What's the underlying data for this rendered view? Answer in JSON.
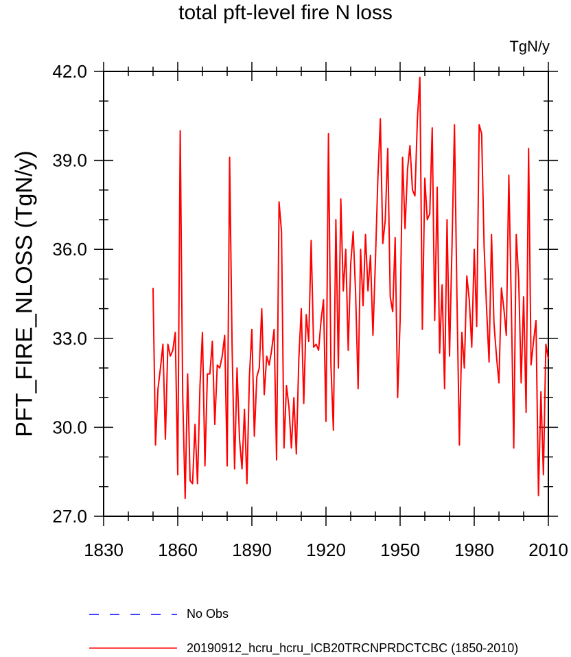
{
  "chart_data": {
    "type": "line",
    "title": "total pft-level fire N loss",
    "units": "TgN/y",
    "ylabel": "PFT_FIRE_NLOSS  (TgN/y)",
    "xlim": [
      1830,
      2010
    ],
    "ylim": [
      27,
      42
    ],
    "x_ticks": [
      "1830",
      "1860",
      "1890",
      "1920",
      "1950",
      "1980",
      "2010"
    ],
    "y_ticks": [
      "27.0",
      "30.0",
      "33.0",
      "36.0",
      "39.0",
      "42.0"
    ],
    "x_tick_values": [
      1830,
      1860,
      1890,
      1920,
      1950,
      1980,
      2010
    ],
    "y_tick_values": [
      27,
      30,
      33,
      36,
      39,
      42
    ],
    "legend": [
      {
        "name": "No Obs",
        "color": "#0000ff",
        "style": "dashed"
      },
      {
        "name": "20190912_hcru_hcru_ICB20TRCNPRDCTCBC (1850-2010)",
        "color": "#ff0000",
        "style": "solid"
      }
    ],
    "series": [
      {
        "name": "20190912_hcru_hcru_ICB20TRCNPRDCTCBC (1850-2010)",
        "color": "#ff0000",
        "x_start": 1850,
        "x_step": 1,
        "values": [
          34.7,
          29.4,
          31.3,
          32.0,
          32.8,
          29.6,
          32.8,
          32.4,
          32.6,
          33.2,
          28.4,
          40.0,
          31.1,
          27.6,
          31.8,
          28.2,
          28.1,
          30.1,
          28.1,
          31.4,
          33.2,
          28.7,
          31.8,
          31.8,
          32.9,
          30.1,
          32.1,
          32.0,
          32.4,
          33.1,
          28.7,
          39.1,
          32.7,
          28.6,
          32.0,
          29.6,
          28.6,
          30.6,
          28.1,
          31.7,
          33.3,
          29.7,
          31.7,
          32.0,
          34.0,
          31.1,
          32.4,
          32.1,
          32.6,
          33.3,
          28.9,
          37.6,
          36.6,
          29.3,
          31.4,
          30.7,
          29.3,
          31.0,
          29.1,
          32.3,
          34.0,
          30.8,
          33.8,
          32.9,
          36.3,
          32.7,
          32.8,
          32.6,
          33.6,
          34.3,
          30.2,
          39.9,
          32.1,
          29.9,
          37.0,
          32.0,
          37.7,
          34.6,
          36.0,
          32.6,
          35.5,
          36.6,
          34.5,
          31.3,
          36.0,
          34.1,
          36.5,
          34.6,
          35.8,
          33.1,
          35.6,
          38.4,
          40.4,
          36.2,
          37.0,
          39.4,
          34.4,
          33.9,
          36.4,
          31.0,
          33.6,
          39.1,
          36.7,
          38.7,
          39.5,
          38.0,
          37.8,
          40.4,
          41.8,
          33.3,
          38.4,
          37.0,
          37.2,
          40.1,
          33.6,
          38.1,
          32.5,
          34.8,
          31.3,
          37.0,
          32.4,
          36.1,
          40.2,
          34.4,
          29.4,
          33.2,
          32.0,
          35.1,
          34.3,
          32.7,
          36.0,
          33.4,
          40.2,
          39.9,
          36.1,
          34.0,
          32.2,
          36.5,
          33.5,
          32.4,
          31.5,
          34.7,
          34.0,
          33.1,
          38.5,
          34.2,
          29.3,
          36.5,
          35.0,
          31.5,
          34.4,
          30.5,
          39.4,
          32.1,
          32.9,
          33.6,
          27.7,
          31.2,
          28.4,
          32.8,
          32.3
        ]
      }
    ]
  }
}
